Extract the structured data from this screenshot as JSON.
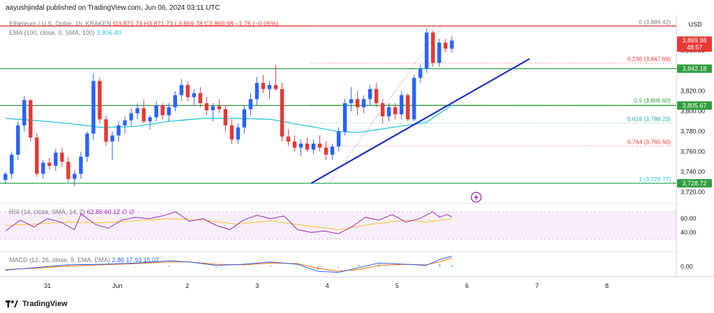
{
  "header": {
    "author": "aayushjindal",
    "published_text": "published on TradingView.com, Jun 06, 2024 03:11 UTC"
  },
  "legend": {
    "main": "Ethereum / U.S. Dollar, 1h, KRAKEN",
    "ohlc": "O3,871.73 H3,871.73 L3,869.78 C3,869.98 −1.75 (−0.05%)",
    "ema": "EMA (100, close, 0, SMA, 100)",
    "ema_value": "3,806.40",
    "rsi": "RSI (14, close, SMA, 14, 2)",
    "rsi_values": "62.86  60.12  ∅  ∅",
    "macd": "MACD (12, 26, close, 9, EMA, EMA)",
    "macd_values": "2.86  17.93  15.07"
  },
  "footer": {
    "brand": "TradingView"
  },
  "colors": {
    "up": "#2962ff",
    "down": "#e53935",
    "ema": "#26c6da",
    "support": "#2e9e3e",
    "resistance": "#e53935",
    "trendline": "#1c2fc4",
    "rsi": "#9c27b0",
    "rsi_ma": "#fbc02d",
    "macd": "#2962ff",
    "signal": "#ff6d00"
  },
  "chart_data": {
    "type": "candlestick",
    "x_labels": [
      "31",
      "Jun",
      "2",
      "3",
      "4",
      "5",
      "6",
      "7",
      "8"
    ],
    "y_axis": {
      "currency": "USD",
      "ticks": [
        "3,720.00",
        "3,740.00",
        "3,760.00",
        "3,780.00",
        "3,800.00",
        "3,820.00",
        "3,860.00"
      ],
      "range": [
        3710,
        3895
      ]
    },
    "price_labels": [
      {
        "text": "3,869.98",
        "sub": "48:57",
        "value": 3869.98,
        "color": "#e53935"
      },
      {
        "text": "3,842.18",
        "value": 3842.18,
        "color": "#2e9e3e"
      },
      {
        "text": "3,805.67",
        "value": 3805.67,
        "color": "#2e9e3e"
      },
      {
        "text": "3,728.72",
        "value": 3728.72,
        "color": "#2e9e3e"
      }
    ],
    "horizontal_lines": [
      {
        "value": 3884.42,
        "color": "#e53935"
      },
      {
        "value": 3842.18,
        "color": "#2e9e3e"
      },
      {
        "value": 3805.67,
        "color": "#2e9e3e"
      },
      {
        "value": 3728.72,
        "color": "#2e9e3e"
      }
    ],
    "fibonacci": [
      {
        "label": "0 (3,884.42)",
        "value": 3884.42,
        "color": "#787b86"
      },
      {
        "label": "0.236 (3,847.69)",
        "value": 3847.69,
        "color": "#e53935"
      },
      {
        "label": "0.5 (3,806.60)",
        "value": 3806.6,
        "color": "#2e9e3e"
      },
      {
        "label": "0.618 (3,788.23)",
        "value": 3788.23,
        "color": "#26a69a"
      },
      {
        "label": "0.764 (3,765.50)",
        "value": 3765.5,
        "color": "#e53935"
      },
      {
        "label": "1 (3,728.77)",
        "value": 3728.77,
        "color": "#26c6da"
      }
    ],
    "trendline": {
      "from": [
        0.46,
        3728.7
      ],
      "to": [
        0.783,
        3852
      ]
    },
    "candles": [
      [
        3732,
        3740,
        3728,
        3738
      ],
      [
        3738,
        3760,
        3733,
        3757
      ],
      [
        3757,
        3790,
        3752,
        3786
      ],
      [
        3786,
        3815,
        3780,
        3811
      ],
      [
        3811,
        3812,
        3770,
        3774
      ],
      [
        3774,
        3778,
        3735,
        3738
      ],
      [
        3738,
        3752,
        3733,
        3749
      ],
      [
        3749,
        3754,
        3742,
        3746
      ],
      [
        3746,
        3763,
        3741,
        3759
      ],
      [
        3759,
        3764,
        3745,
        3750
      ],
      [
        3750,
        3755,
        3730,
        3733
      ],
      [
        3733,
        3742,
        3726,
        3738
      ],
      [
        3738,
        3760,
        3733,
        3755
      ],
      [
        3755,
        3780,
        3750,
        3778
      ],
      [
        3778,
        3838,
        3772,
        3830
      ],
      [
        3830,
        3834,
        3788,
        3792
      ],
      [
        3792,
        3796,
        3766,
        3770
      ],
      [
        3770,
        3780,
        3752,
        3776
      ],
      [
        3776,
        3790,
        3770,
        3786
      ],
      [
        3786,
        3795,
        3778,
        3791
      ],
      [
        3791,
        3803,
        3785,
        3798
      ],
      [
        3798,
        3808,
        3792,
        3803
      ],
      [
        3803,
        3812,
        3788,
        3790
      ],
      [
        3790,
        3796,
        3782,
        3794
      ],
      [
        3794,
        3810,
        3790,
        3806
      ],
      [
        3806,
        3808,
        3792,
        3796
      ],
      [
        3796,
        3808,
        3790,
        3804
      ],
      [
        3804,
        3820,
        3800,
        3816
      ],
      [
        3816,
        3832,
        3810,
        3826
      ],
      [
        3826,
        3830,
        3810,
        3814
      ],
      [
        3814,
        3822,
        3806,
        3818
      ],
      [
        3818,
        3824,
        3804,
        3808
      ],
      [
        3808,
        3814,
        3796,
        3801
      ],
      [
        3801,
        3808,
        3790,
        3805
      ],
      [
        3805,
        3812,
        3798,
        3802
      ],
      [
        3802,
        3806,
        3780,
        3786
      ],
      [
        3786,
        3792,
        3768,
        3772
      ],
      [
        3772,
        3788,
        3768,
        3784
      ],
      [
        3784,
        3806,
        3778,
        3802
      ],
      [
        3802,
        3818,
        3796,
        3812
      ],
      [
        3812,
        3834,
        3806,
        3828
      ],
      [
        3828,
        3836,
        3818,
        3822
      ],
      [
        3822,
        3830,
        3812,
        3826
      ],
      [
        3826,
        3846,
        3820,
        3822
      ],
      [
        3822,
        3828,
        3770,
        3775
      ],
      [
        3775,
        3782,
        3766,
        3770
      ],
      [
        3770,
        3776,
        3760,
        3764
      ],
      [
        3764,
        3772,
        3756,
        3768
      ],
      [
        3768,
        3774,
        3760,
        3762
      ],
      [
        3762,
        3772,
        3758,
        3768
      ],
      [
        3768,
        3776,
        3760,
        3764
      ],
      [
        3764,
        3770,
        3752,
        3757
      ],
      [
        3757,
        3768,
        3752,
        3765
      ],
      [
        3765,
        3784,
        3760,
        3780
      ],
      [
        3780,
        3812,
        3776,
        3808
      ],
      [
        3808,
        3824,
        3800,
        3812
      ],
      [
        3812,
        3820,
        3796,
        3804
      ],
      [
        3804,
        3816,
        3798,
        3812
      ],
      [
        3812,
        3826,
        3806,
        3822
      ],
      [
        3822,
        3828,
        3804,
        3808
      ],
      [
        3808,
        3812,
        3788,
        3795
      ],
      [
        3795,
        3808,
        3790,
        3804
      ],
      [
        3804,
        3808,
        3792,
        3797
      ],
      [
        3797,
        3820,
        3792,
        3816
      ],
      [
        3816,
        3818,
        3790,
        3792
      ],
      [
        3792,
        3836,
        3790,
        3833
      ],
      [
        3833,
        3846,
        3828,
        3842
      ],
      [
        3842,
        3882,
        3838,
        3878
      ],
      [
        3878,
        3880,
        3844,
        3848
      ],
      [
        3848,
        3872,
        3844,
        3868
      ],
      [
        3868,
        3872,
        3858,
        3862
      ],
      [
        3862,
        3874,
        3858,
        3870
      ]
    ],
    "candle_x_range": [
      0.008,
      0.668
    ],
    "ema_line": [
      [
        0.008,
        3793
      ],
      [
        0.05,
        3791
      ],
      [
        0.1,
        3788
      ],
      [
        0.15,
        3784
      ],
      [
        0.2,
        3785
      ],
      [
        0.25,
        3790
      ],
      [
        0.3,
        3793
      ],
      [
        0.35,
        3793
      ],
      [
        0.4,
        3792
      ],
      [
        0.45,
        3786
      ],
      [
        0.5,
        3780
      ],
      [
        0.53,
        3779
      ],
      [
        0.56,
        3782
      ],
      [
        0.6,
        3786
      ],
      [
        0.63,
        3789
      ],
      [
        0.668,
        3806
      ]
    ],
    "rsi": {
      "ticks": [
        "60.00",
        "40.00"
      ],
      "band": [
        30,
        70
      ],
      "range": [
        15,
        80
      ],
      "values": [
        [
          0.008,
          42
        ],
        [
          0.03,
          58
        ],
        [
          0.05,
          48
        ],
        [
          0.07,
          60
        ],
        [
          0.09,
          55
        ],
        [
          0.11,
          44
        ],
        [
          0.12,
          67
        ],
        [
          0.14,
          52
        ],
        [
          0.16,
          46
        ],
        [
          0.18,
          58
        ],
        [
          0.2,
          62
        ],
        [
          0.22,
          60
        ],
        [
          0.24,
          64
        ],
        [
          0.26,
          70
        ],
        [
          0.28,
          56
        ],
        [
          0.3,
          60
        ],
        [
          0.32,
          50
        ],
        [
          0.34,
          44
        ],
        [
          0.36,
          58
        ],
        [
          0.38,
          65
        ],
        [
          0.4,
          60
        ],
        [
          0.42,
          64
        ],
        [
          0.44,
          44
        ],
        [
          0.46,
          40
        ],
        [
          0.48,
          42
        ],
        [
          0.5,
          38
        ],
        [
          0.52,
          48
        ],
        [
          0.54,
          62
        ],
        [
          0.56,
          58
        ],
        [
          0.58,
          66
        ],
        [
          0.6,
          55
        ],
        [
          0.62,
          60
        ],
        [
          0.64,
          70
        ],
        [
          0.65,
          62
        ],
        [
          0.66,
          66
        ],
        [
          0.668,
          62.86
        ]
      ],
      "ma": [
        [
          0.008,
          50
        ],
        [
          0.05,
          52
        ],
        [
          0.1,
          55
        ],
        [
          0.15,
          54
        ],
        [
          0.2,
          57
        ],
        [
          0.25,
          60
        ],
        [
          0.3,
          58
        ],
        [
          0.35,
          52
        ],
        [
          0.4,
          57
        ],
        [
          0.45,
          50
        ],
        [
          0.5,
          44
        ],
        [
          0.55,
          52
        ],
        [
          0.6,
          58
        ],
        [
          0.63,
          55
        ],
        [
          0.668,
          60.12
        ]
      ]
    },
    "macd": {
      "ticks": [
        "0.00"
      ],
      "range": [
        -15,
        22
      ],
      "macd_line": [
        [
          0.008,
          -6
        ],
        [
          0.05,
          -2
        ],
        [
          0.1,
          3
        ],
        [
          0.15,
          4
        ],
        [
          0.2,
          6
        ],
        [
          0.25,
          10
        ],
        [
          0.28,
          8
        ],
        [
          0.32,
          2
        ],
        [
          0.36,
          4
        ],
        [
          0.4,
          8
        ],
        [
          0.44,
          4
        ],
        [
          0.47,
          -8
        ],
        [
          0.5,
          -10
        ],
        [
          0.53,
          -2
        ],
        [
          0.56,
          6
        ],
        [
          0.6,
          4
        ],
        [
          0.63,
          2
        ],
        [
          0.65,
          12
        ],
        [
          0.668,
          17.93
        ]
      ],
      "signal_line": [
        [
          0.008,
          -5
        ],
        [
          0.05,
          -3
        ],
        [
          0.1,
          1
        ],
        [
          0.15,
          3
        ],
        [
          0.2,
          5
        ],
        [
          0.25,
          8
        ],
        [
          0.28,
          8
        ],
        [
          0.32,
          4
        ],
        [
          0.36,
          3
        ],
        [
          0.4,
          6
        ],
        [
          0.44,
          5
        ],
        [
          0.47,
          -3
        ],
        [
          0.5,
          -8
        ],
        [
          0.53,
          -5
        ],
        [
          0.56,
          2
        ],
        [
          0.6,
          4
        ],
        [
          0.63,
          3
        ],
        [
          0.65,
          8
        ],
        [
          0.668,
          15.07
        ]
      ]
    }
  }
}
